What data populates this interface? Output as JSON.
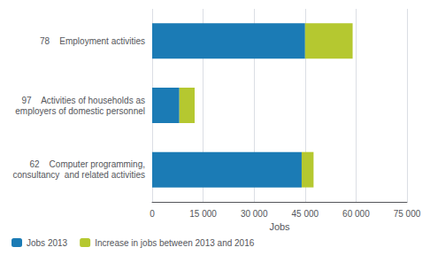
{
  "chart_data": {
    "type": "bar",
    "orientation": "horizontal",
    "stacked": true,
    "xlabel": "Jobs",
    "categories": [
      "78    Employment activities",
      "97    Activities of households as\nemployers of domestic personnel",
      "62    Computer programming,\nconsultancy  and related activities"
    ],
    "series": [
      {
        "name": "Jobs 2013",
        "color": "#1b7bb5",
        "values": [
          45000,
          8000,
          44000
        ]
      },
      {
        "name": "Increase in jobs between 2013 and 2016",
        "color": "#b5c830",
        "values": [
          14000,
          4500,
          3500
        ]
      }
    ],
    "xlim": [
      0,
      75000
    ],
    "xticks": [
      0,
      {
        "value": 15000,
        "label": "15 000"
      },
      {
        "value": 30000,
        "label": "30 000"
      },
      {
        "value": 45000,
        "label": "45 000"
      },
      {
        "value": 60000,
        "label": "60 000"
      },
      {
        "value": 75000,
        "label": "75 000"
      }
    ],
    "grid": true,
    "legend": "lower left"
  }
}
